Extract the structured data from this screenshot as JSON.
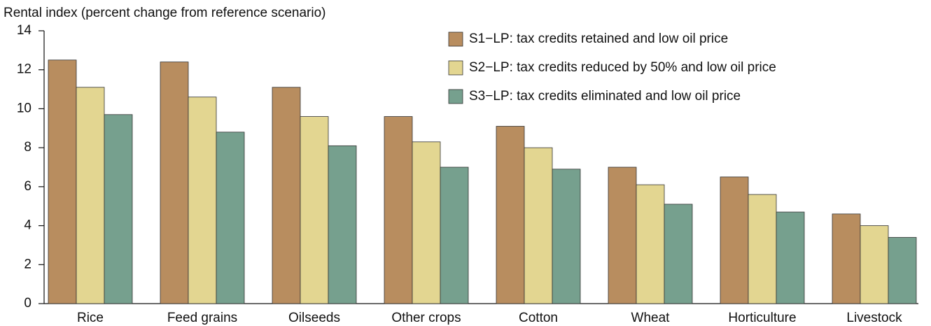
{
  "chart_data": {
    "type": "bar",
    "y_label": "Rental index (percent change from reference scenario)",
    "categories": [
      "Rice",
      "Feed grains",
      "Oilseeds",
      "Other crops",
      "Cotton",
      "Wheat",
      "Horticulture",
      "Livestock"
    ],
    "series": [
      {
        "name": "S1−LP: tax credits retained and low oil price",
        "color": "#b88d5f",
        "values": [
          12.5,
          12.4,
          11.1,
          9.6,
          9.1,
          7.0,
          6.5,
          4.6
        ]
      },
      {
        "name": "S2−LP: tax credits reduced by 50% and low oil price",
        "color": "#e3d691",
        "values": [
          11.1,
          10.6,
          9.6,
          8.3,
          8.0,
          6.1,
          5.6,
          4.0
        ]
      },
      {
        "name": "S3−LP: tax credits eliminated and low oil price",
        "color": "#76a08e",
        "values": [
          9.7,
          8.8,
          8.1,
          7.0,
          6.9,
          5.1,
          4.7,
          3.4
        ]
      }
    ],
    "ylim": [
      0,
      14
    ],
    "yticks": [
      0,
      2,
      4,
      6,
      8,
      10,
      12,
      14
    ],
    "grid": false,
    "legend": "top-right"
  }
}
